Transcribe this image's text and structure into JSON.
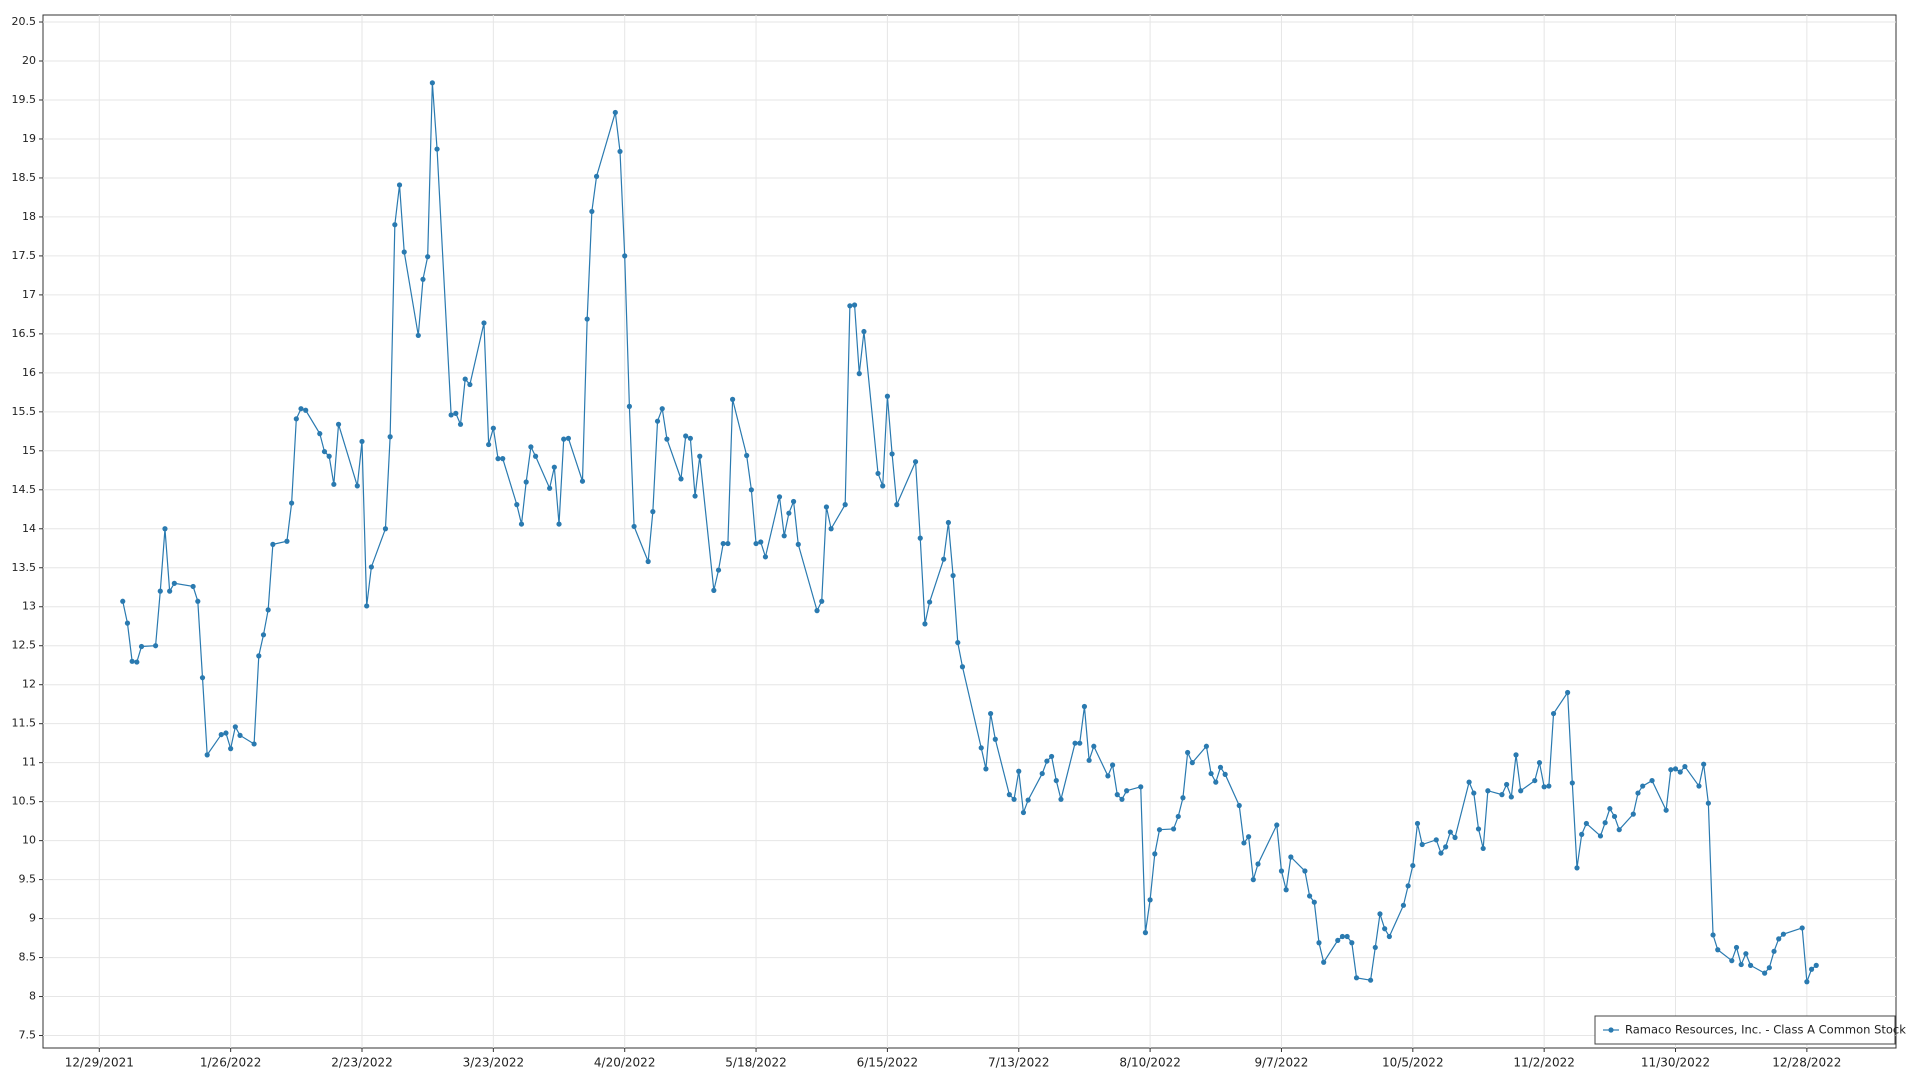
{
  "chart_data": {
    "type": "line",
    "x": [
      "1/3/2022",
      "1/4/2022",
      "1/5/2022",
      "1/6/2022",
      "1/7/2022",
      "1/10/2022",
      "1/11/2022",
      "1/12/2022",
      "1/13/2022",
      "1/14/2022",
      "1/18/2022",
      "1/19/2022",
      "1/20/2022",
      "1/21/2022",
      "1/24/2022",
      "1/25/2022",
      "1/26/2022",
      "1/27/2022",
      "1/28/2022",
      "1/31/2022",
      "2/1/2022",
      "2/2/2022",
      "2/3/2022",
      "2/4/2022",
      "2/7/2022",
      "2/8/2022",
      "2/9/2022",
      "2/10/2022",
      "2/11/2022",
      "2/14/2022",
      "2/15/2022",
      "2/16/2022",
      "2/17/2022",
      "2/18/2022",
      "2/22/2022",
      "2/23/2022",
      "2/24/2022",
      "2/25/2022",
      "2/28/2022",
      "3/1/2022",
      "3/2/2022",
      "3/3/2022",
      "3/4/2022",
      "3/7/2022",
      "3/8/2022",
      "3/9/2022",
      "3/10/2022",
      "3/11/2022",
      "3/14/2022",
      "3/15/2022",
      "3/16/2022",
      "3/17/2022",
      "3/18/2022",
      "3/21/2022",
      "3/22/2022",
      "3/23/2022",
      "3/24/2022",
      "3/25/2022",
      "3/28/2022",
      "3/29/2022",
      "3/30/2022",
      "3/31/2022",
      "4/1/2022",
      "4/4/2022",
      "4/5/2022",
      "4/6/2022",
      "4/7/2022",
      "4/8/2022",
      "4/11/2022",
      "4/12/2022",
      "4/13/2022",
      "4/14/2022",
      "4/18/2022",
      "4/19/2022",
      "4/20/2022",
      "4/21/2022",
      "4/22/2022",
      "4/25/2022",
      "4/26/2022",
      "4/27/2022",
      "4/28/2022",
      "4/29/2022",
      "5/2/2022",
      "5/3/2022",
      "5/4/2022",
      "5/5/2022",
      "5/6/2022",
      "5/9/2022",
      "5/10/2022",
      "5/11/2022",
      "5/12/2022",
      "5/13/2022",
      "5/16/2022",
      "5/17/2022",
      "5/18/2022",
      "5/19/2022",
      "5/20/2022",
      "5/23/2022",
      "5/24/2022",
      "5/25/2022",
      "5/26/2022",
      "5/27/2022",
      "5/31/2022",
      "6/1/2022",
      "6/2/2022",
      "6/3/2022",
      "6/6/2022",
      "6/7/2022",
      "6/8/2022",
      "6/9/2022",
      "6/10/2022",
      "6/13/2022",
      "6/14/2022",
      "6/15/2022",
      "6/16/2022",
      "6/17/2022",
      "6/21/2022",
      "6/22/2022",
      "6/23/2022",
      "6/24/2022",
      "6/27/2022",
      "6/28/2022",
      "6/29/2022",
      "6/30/2022",
      "7/1/2022",
      "7/5/2022",
      "7/6/2022",
      "7/7/2022",
      "7/8/2022",
      "7/11/2022",
      "7/12/2022",
      "7/13/2022",
      "7/14/2022",
      "7/15/2022",
      "7/18/2022",
      "7/19/2022",
      "7/20/2022",
      "7/21/2022",
      "7/22/2022",
      "7/25/2022",
      "7/26/2022",
      "7/27/2022",
      "7/28/2022",
      "7/29/2022",
      "8/1/2022",
      "8/2/2022",
      "8/3/2022",
      "8/4/2022",
      "8/5/2022",
      "8/8/2022",
      "8/9/2022",
      "8/10/2022",
      "8/11/2022",
      "8/12/2022",
      "8/15/2022",
      "8/16/2022",
      "8/17/2022",
      "8/18/2022",
      "8/19/2022",
      "8/22/2022",
      "8/23/2022",
      "8/24/2022",
      "8/25/2022",
      "8/26/2022",
      "8/29/2022",
      "8/30/2022",
      "8/31/2022",
      "9/1/2022",
      "9/2/2022",
      "9/6/2022",
      "9/7/2022",
      "9/8/2022",
      "9/9/2022",
      "9/12/2022",
      "9/13/2022",
      "9/14/2022",
      "9/15/2022",
      "9/16/2022",
      "9/19/2022",
      "9/20/2022",
      "9/21/2022",
      "9/22/2022",
      "9/23/2022",
      "9/26/2022",
      "9/27/2022",
      "9/28/2022",
      "9/29/2022",
      "9/30/2022",
      "10/3/2022",
      "10/4/2022",
      "10/5/2022",
      "10/6/2022",
      "10/7/2022",
      "10/10/2022",
      "10/11/2022",
      "10/12/2022",
      "10/13/2022",
      "10/14/2022",
      "10/17/2022",
      "10/18/2022",
      "10/19/2022",
      "10/20/2022",
      "10/21/2022",
      "10/24/2022",
      "10/25/2022",
      "10/26/2022",
      "10/27/2022",
      "10/28/2022",
      "10/31/2022",
      "11/1/2022",
      "11/2/2022",
      "11/3/2022",
      "11/4/2022",
      "11/7/2022",
      "11/8/2022",
      "11/9/2022",
      "11/10/2022",
      "11/11/2022",
      "11/14/2022",
      "11/15/2022",
      "11/16/2022",
      "11/17/2022",
      "11/18/2022",
      "11/21/2022",
      "11/22/2022",
      "11/23/2022",
      "11/25/2022",
      "11/28/2022",
      "11/29/2022",
      "11/30/2022",
      "12/1/2022",
      "12/2/2022",
      "12/5/2022",
      "12/6/2022",
      "12/7/2022",
      "12/8/2022",
      "12/9/2022",
      "12/12/2022",
      "12/13/2022",
      "12/14/2022",
      "12/15/2022",
      "12/16/2022",
      "12/19/2022",
      "12/20/2022",
      "12/21/2022",
      "12/22/2022",
      "12/23/2022",
      "12/27/2022",
      "12/28/2022",
      "12/29/2022",
      "12/30/2022"
    ],
    "series": [
      {
        "name": "Ramaco Resources, Inc. - Class A Common Stock",
        "color": "#2a7ab0",
        "values": [
          13.07,
          12.79,
          12.3,
          12.29,
          12.49,
          12.5,
          13.2,
          14.0,
          13.2,
          13.3,
          13.26,
          13.07,
          12.09,
          11.1,
          11.36,
          11.38,
          11.18,
          11.46,
          11.35,
          11.24,
          12.37,
          12.64,
          12.96,
          13.8,
          13.84,
          14.33,
          15.41,
          15.54,
          15.52,
          15.22,
          14.99,
          14.93,
          14.57,
          15.34,
          14.55,
          15.12,
          13.01,
          13.51,
          14.0,
          15.18,
          17.9,
          18.41,
          17.55,
          16.48,
          17.2,
          17.49,
          19.72,
          18.87,
          15.46,
          15.48,
          15.34,
          15.92,
          15.85,
          16.64,
          15.08,
          15.29,
          14.9,
          14.9,
          14.31,
          14.06,
          14.6,
          15.05,
          14.93,
          14.52,
          14.79,
          14.06,
          15.15,
          15.16,
          14.61,
          16.69,
          18.07,
          18.52,
          19.34,
          18.84,
          17.5,
          15.57,
          14.03,
          13.58,
          14.22,
          15.38,
          15.54,
          15.15,
          14.64,
          15.19,
          15.16,
          14.42,
          14.93,
          13.21,
          13.47,
          13.81,
          13.81,
          15.66,
          14.94,
          14.5,
          13.81,
          13.83,
          13.64,
          14.41,
          13.91,
          14.2,
          14.35,
          13.8,
          12.95,
          13.07,
          14.28,
          14.0,
          14.31,
          16.86,
          16.87,
          15.99,
          16.53,
          14.71,
          14.55,
          15.7,
          14.96,
          14.31,
          14.86,
          13.88,
          12.78,
          13.06,
          13.61,
          14.08,
          13.4,
          12.54,
          12.23,
          11.19,
          10.92,
          11.63,
          11.3,
          10.59,
          10.53,
          10.89,
          10.36,
          10.52,
          10.86,
          11.02,
          11.08,
          10.77,
          10.53,
          11.25,
          11.25,
          11.72,
          11.03,
          11.21,
          10.83,
          10.97,
          10.59,
          10.53,
          10.64,
          10.69,
          8.82,
          9.24,
          9.83,
          10.14,
          10.15,
          10.31,
          10.55,
          11.13,
          11.0,
          11.21,
          10.86,
          10.75,
          10.94,
          10.85,
          10.45,
          9.97,
          10.05,
          9.5,
          9.7,
          10.2,
          9.61,
          9.37,
          9.79,
          9.61,
          9.29,
          9.21,
          8.69,
          8.44,
          8.72,
          8.77,
          8.77,
          8.69,
          8.24,
          8.21,
          8.63,
          9.06,
          8.87,
          8.77,
          9.17,
          9.42,
          9.68,
          10.22,
          9.95,
          10.01,
          9.84,
          9.92,
          10.11,
          10.04,
          10.75,
          10.61,
          10.15,
          9.9,
          10.64,
          10.59,
          10.72,
          10.56,
          11.1,
          10.64,
          10.77,
          11.0,
          10.69,
          10.7,
          11.63,
          11.9,
          10.74,
          9.65,
          10.08,
          10.22,
          10.06,
          10.23,
          10.41,
          10.31,
          10.14,
          10.34,
          10.61,
          10.7,
          10.77,
          10.39,
          10.91,
          10.92,
          10.88,
          10.95,
          10.7,
          10.98,
          10.48,
          8.79,
          8.6,
          8.46,
          8.63,
          8.41,
          8.55,
          8.4,
          8.3,
          8.37,
          8.58,
          8.74,
          8.8,
          8.88,
          8.19,
          8.35,
          8.4
        ]
      }
    ],
    "xlim": [
      "12/17/2021",
      "1/16/2023"
    ],
    "xticks": [
      "12/29/2021",
      "1/26/2022",
      "2/23/2022",
      "3/23/2022",
      "4/20/2022",
      "5/18/2022",
      "6/15/2022",
      "7/13/2022",
      "8/10/2022",
      "9/7/2022",
      "10/5/2022",
      "11/2/2022",
      "11/30/2022",
      "12/28/2022"
    ],
    "ylim": [
      7.34,
      20.59
    ],
    "yticks": [
      7.5,
      8,
      8.5,
      9,
      9.5,
      10,
      10.5,
      11,
      11.5,
      12,
      12.5,
      13,
      13.5,
      14,
      14.5,
      15,
      15.5,
      16,
      16.5,
      17,
      17.5,
      18,
      18.5,
      19,
      19.5,
      20,
      20.5
    ],
    "grid": true,
    "legend": "lower right"
  }
}
